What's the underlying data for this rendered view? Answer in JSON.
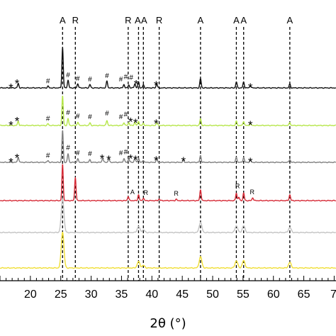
{
  "chart_data": {
    "type": "line",
    "title": "",
    "xlabel": "2θ (°)",
    "ylabel": "",
    "xlim": [
      15,
      70
    ],
    "x_ticks": [
      20,
      25,
      30,
      35,
      40,
      45,
      50,
      55,
      60,
      65
    ],
    "x_tick_labels": [
      "20",
      "25",
      "30",
      "35",
      "40",
      "45",
      "50",
      "55",
      "60",
      "65"
    ],
    "x_tick_label_partial": "7",
    "grid": false,
    "reference_lines": [
      {
        "label": "A",
        "x": 25.3
      },
      {
        "label": "R",
        "x": 27.4
      },
      {
        "label": "R",
        "x": 36.1
      },
      {
        "label": "A",
        "x": 37.8
      },
      {
        "label": "A",
        "x": 38.6
      },
      {
        "label": "R",
        "x": 41.2
      },
      {
        "label": "A",
        "x": 48.0
      },
      {
        "label": "A",
        "x": 53.9
      },
      {
        "label": "A",
        "x": 55.1
      },
      {
        "label": "A",
        "x": 62.7
      }
    ],
    "series": [
      {
        "color": "#111111",
        "peaks": [
          {
            "x": 18.0,
            "h": 0.1
          },
          {
            "x": 22.9,
            "h": 0.04
          },
          {
            "x": 25.3,
            "h": 0.95
          },
          {
            "x": 26.2,
            "h": 0.18
          },
          {
            "x": 27.8,
            "h": 0.1
          },
          {
            "x": 29.8,
            "h": 0.08
          },
          {
            "x": 32.6,
            "h": 0.16
          },
          {
            "x": 35.4,
            "h": 0.08
          },
          {
            "x": 36.2,
            "h": 0.07
          },
          {
            "x": 37.2,
            "h": 0.1
          },
          {
            "x": 37.8,
            "h": 0.14
          },
          {
            "x": 38.6,
            "h": 0.07
          },
          {
            "x": 40.8,
            "h": 0.1
          },
          {
            "x": 48.0,
            "h": 0.22
          },
          {
            "x": 53.9,
            "h": 0.14
          },
          {
            "x": 55.1,
            "h": 0.14
          },
          {
            "x": 56.2,
            "h": 0.05
          },
          {
            "x": 62.7,
            "h": 0.09
          }
        ],
        "markers": [
          {
            "sym": "*",
            "x": 16.8,
            "lift": 0.06
          },
          {
            "sym": "*",
            "x": 17.8,
            "lift": 0.16
          },
          {
            "sym": "#",
            "x": 22.9,
            "lift": 0.06
          },
          {
            "sym": "#",
            "x": 26.2,
            "lift": 0.2
          },
          {
            "sym": "#",
            "x": 27.8,
            "lift": 0.12
          },
          {
            "sym": "#",
            "x": 29.8,
            "lift": 0.1
          },
          {
            "sym": "#",
            "x": 32.6,
            "lift": 0.18
          },
          {
            "sym": "#",
            "x": 34.9,
            "lift": 0.1
          },
          {
            "sym": "#",
            "x": 35.7,
            "lift": 0.16
          },
          {
            "sym": "#",
            "x": 36.6,
            "lift": 0.14
          },
          {
            "sym": "*",
            "x": 37.4,
            "lift": 0.14
          },
          {
            "sym": "*",
            "x": 40.7,
            "lift": 0.12
          },
          {
            "sym": "*",
            "x": 56.2,
            "lift": 0.07
          }
        ]
      },
      {
        "color": "#b6e64a",
        "peaks": [
          {
            "x": 18.0,
            "h": 0.1
          },
          {
            "x": 22.9,
            "h": 0.04
          },
          {
            "x": 25.3,
            "h": 0.7
          },
          {
            "x": 26.2,
            "h": 0.16
          },
          {
            "x": 27.8,
            "h": 0.08
          },
          {
            "x": 29.8,
            "h": 0.06
          },
          {
            "x": 32.6,
            "h": 0.12
          },
          {
            "x": 35.4,
            "h": 0.07
          },
          {
            "x": 36.2,
            "h": 0.07
          },
          {
            "x": 37.2,
            "h": 0.08
          },
          {
            "x": 37.8,
            "h": 0.1
          },
          {
            "x": 38.6,
            "h": 0.05
          },
          {
            "x": 40.8,
            "h": 0.07
          },
          {
            "x": 48.0,
            "h": 0.16
          },
          {
            "x": 53.9,
            "h": 0.1
          },
          {
            "x": 55.1,
            "h": 0.1
          },
          {
            "x": 56.2,
            "h": 0.04
          },
          {
            "x": 62.7,
            "h": 0.07
          }
        ],
        "markers": [
          {
            "sym": "*",
            "x": 16.8,
            "lift": 0.06
          },
          {
            "sym": "*",
            "x": 17.8,
            "lift": 0.16
          },
          {
            "sym": "#",
            "x": 22.9,
            "lift": 0.06
          },
          {
            "sym": "#",
            "x": 26.2,
            "lift": 0.2
          },
          {
            "sym": "#",
            "x": 27.8,
            "lift": 0.12
          },
          {
            "sym": "#",
            "x": 29.8,
            "lift": 0.1
          },
          {
            "sym": "#",
            "x": 32.6,
            "lift": 0.18
          },
          {
            "sym": "#",
            "x": 34.9,
            "lift": 0.1
          },
          {
            "sym": "#",
            "x": 35.7,
            "lift": 0.16
          },
          {
            "sym": "*",
            "x": 36.5,
            "lift": 0.14
          },
          {
            "sym": "*",
            "x": 37.3,
            "lift": 0.12
          },
          {
            "sym": "*",
            "x": 40.7,
            "lift": 0.1
          },
          {
            "sym": "*",
            "x": 56.2,
            "lift": 0.07
          }
        ]
      },
      {
        "color": "#7f7f7f",
        "peaks": [
          {
            "x": 18.0,
            "h": 0.12
          },
          {
            "x": 22.9,
            "h": 0.04
          },
          {
            "x": 25.3,
            "h": 0.75
          },
          {
            "x": 26.2,
            "h": 0.2
          },
          {
            "x": 27.8,
            "h": 0.08
          },
          {
            "x": 29.8,
            "h": 0.06
          },
          {
            "x": 31.9,
            "h": 0.1
          },
          {
            "x": 32.9,
            "h": 0.08
          },
          {
            "x": 35.4,
            "h": 0.09
          },
          {
            "x": 36.2,
            "h": 0.09
          },
          {
            "x": 37.2,
            "h": 0.1
          },
          {
            "x": 37.8,
            "h": 0.1
          },
          {
            "x": 38.6,
            "h": 0.05
          },
          {
            "x": 40.8,
            "h": 0.08
          },
          {
            "x": 45.2,
            "h": 0.04
          },
          {
            "x": 48.0,
            "h": 0.16
          },
          {
            "x": 53.9,
            "h": 0.12
          },
          {
            "x": 55.1,
            "h": 0.12
          },
          {
            "x": 56.2,
            "h": 0.05
          },
          {
            "x": 62.7,
            "h": 0.07
          }
        ],
        "markers": [
          {
            "sym": "*",
            "x": 16.8,
            "lift": 0.06
          },
          {
            "sym": "*",
            "x": 17.8,
            "lift": 0.16
          },
          {
            "sym": "#",
            "x": 22.9,
            "lift": 0.06
          },
          {
            "sym": "#",
            "x": 26.2,
            "lift": 0.24
          },
          {
            "sym": "#",
            "x": 27.8,
            "lift": 0.12
          },
          {
            "sym": "#",
            "x": 29.8,
            "lift": 0.1
          },
          {
            "sym": "*",
            "x": 31.8,
            "lift": 0.14
          },
          {
            "sym": "*",
            "x": 32.9,
            "lift": 0.12
          },
          {
            "sym": "#",
            "x": 34.9,
            "lift": 0.12
          },
          {
            "sym": "#",
            "x": 35.7,
            "lift": 0.14
          },
          {
            "sym": "*",
            "x": 36.5,
            "lift": 0.14
          },
          {
            "sym": "*",
            "x": 37.3,
            "lift": 0.12
          },
          {
            "sym": "*",
            "x": 40.7,
            "lift": 0.1
          },
          {
            "sym": "*",
            "x": 45.2,
            "lift": 0.08
          },
          {
            "sym": "*",
            "x": 56.2,
            "lift": 0.07
          }
        ]
      },
      {
        "color": "#d62a36",
        "peaks": [
          {
            "x": 25.3,
            "h": 0.85
          },
          {
            "x": 27.4,
            "h": 0.55
          },
          {
            "x": 36.1,
            "h": 0.1
          },
          {
            "x": 37.8,
            "h": 0.14
          },
          {
            "x": 38.6,
            "h": 0.06
          },
          {
            "x": 41.2,
            "h": 0.04
          },
          {
            "x": 44.0,
            "h": 0.03
          },
          {
            "x": 48.0,
            "h": 0.26
          },
          {
            "x": 53.9,
            "h": 0.18
          },
          {
            "x": 54.3,
            "h": 0.08
          },
          {
            "x": 55.1,
            "h": 0.18
          },
          {
            "x": 56.6,
            "h": 0.07
          },
          {
            "x": 62.7,
            "h": 0.14
          }
        ],
        "markers": [
          {
            "sym": "A",
            "x": 36.8,
            "lift": 0.1
          },
          {
            "sym": "R",
            "x": 39.0,
            "lift": 0.08
          },
          {
            "sym": "R",
            "x": 44.0,
            "lift": 0.07
          },
          {
            "sym": "R",
            "x": 54.1,
            "lift": 0.24
          },
          {
            "sym": "R",
            "x": 56.5,
            "lift": 0.1
          }
        ]
      },
      {
        "color": "#c3c3c3",
        "peaks": [
          {
            "x": 25.3,
            "h": 0.8
          },
          {
            "x": 37.8,
            "h": 0.14
          },
          {
            "x": 38.6,
            "h": 0.06
          },
          {
            "x": 48.0,
            "h": 0.24
          },
          {
            "x": 53.9,
            "h": 0.16
          },
          {
            "x": 55.1,
            "h": 0.16
          },
          {
            "x": 62.7,
            "h": 0.12
          }
        ],
        "markers": []
      },
      {
        "color": "#f0de34",
        "peaks": [
          {
            "x": 25.3,
            "h": 0.85
          },
          {
            "x": 37.8,
            "h": 0.15
          },
          {
            "x": 38.6,
            "h": 0.06
          },
          {
            "x": 48.0,
            "h": 0.26
          },
          {
            "x": 53.9,
            "h": 0.17
          },
          {
            "x": 55.1,
            "h": 0.17
          },
          {
            "x": 62.7,
            "h": 0.13
          }
        ],
        "markers": []
      }
    ]
  }
}
